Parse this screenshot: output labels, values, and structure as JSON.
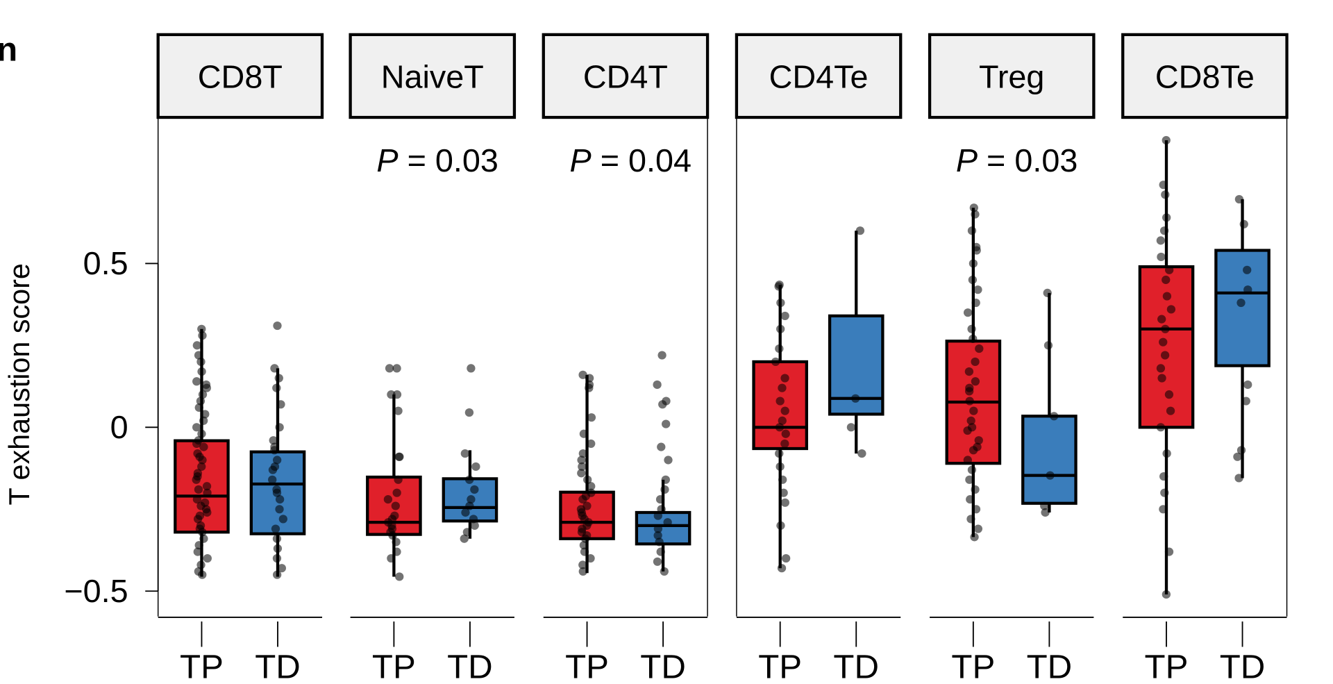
{
  "panel_label": "n",
  "chart_data": {
    "type": "box",
    "ylabel": "T exhaustion score",
    "yticks": [
      0.5,
      0,
      -0.5
    ],
    "ytick_labels": [
      "0.5",
      "0",
      "−0.5"
    ],
    "ylim": [
      -0.58,
      0.93
    ],
    "grid": false,
    "categories": [
      "TP",
      "TD"
    ],
    "colors": {
      "TP": "#e0202a",
      "TD": "#3a7dbb"
    },
    "panels": [
      {
        "name": "CD8T",
        "pvalue": "",
        "groups": [
          {
            "label": "TP",
            "whisker_low": -0.456,
            "q1": -0.32,
            "median": -0.21,
            "q3": -0.041,
            "whisker_high": 0.3,
            "points": [
              0.3,
              0.28,
              0.25,
              0.22,
              0.2,
              0.17,
              0.14,
              0.13,
              0.1,
              0.08,
              0.06,
              0.04,
              0.02,
              0.0,
              -0.02,
              -0.04,
              -0.06,
              -0.08,
              -0.1,
              -0.12,
              -0.14,
              -0.16,
              -0.18,
              -0.2,
              -0.22,
              -0.24,
              -0.26,
              -0.28,
              -0.3,
              -0.32,
              -0.34,
              -0.36,
              -0.38,
              -0.4,
              -0.42,
              -0.44,
              -0.45,
              -0.09,
              -0.15,
              -0.23,
              -0.27,
              -0.31,
              -0.05,
              0.12,
              -0.19,
              -0.25
            ]
          },
          {
            "label": "TD",
            "whisker_low": -0.456,
            "q1": -0.325,
            "median": -0.173,
            "q3": -0.075,
            "whisker_high": 0.18,
            "points": [
              0.31,
              0.18,
              0.15,
              0.12,
              0.07,
              0.0,
              -0.04,
              -0.07,
              -0.1,
              -0.13,
              -0.16,
              -0.19,
              -0.22,
              -0.25,
              -0.28,
              -0.31,
              -0.34,
              -0.37,
              -0.4,
              -0.43,
              -0.45,
              -0.2,
              -0.12,
              -0.06
            ]
          }
        ]
      },
      {
        "name": "NaiveT",
        "pvalue": "0.03",
        "groups": [
          {
            "label": "TP",
            "whisker_low": -0.456,
            "q1": -0.327,
            "median": -0.29,
            "q3": -0.152,
            "whisker_high": 0.1,
            "points": [
              0.18,
              0.18,
              0.1,
              0.1,
              0.05,
              -0.09,
              -0.09,
              -0.16,
              -0.2,
              -0.24,
              -0.27,
              -0.29,
              -0.3,
              -0.31,
              -0.32,
              -0.33,
              -0.35,
              -0.38,
              -0.4,
              -0.456,
              -0.22,
              -0.28
            ]
          },
          {
            "label": "TD",
            "whisker_low": -0.34,
            "q1": -0.286,
            "median": -0.245,
            "q3": -0.157,
            "whisker_high": -0.07,
            "points": [
              0.18,
              0.045,
              -0.08,
              -0.12,
              -0.16,
              -0.19,
              -0.22,
              -0.24,
              -0.26,
              -0.28,
              -0.3,
              -0.32,
              -0.34
            ]
          }
        ]
      },
      {
        "name": "CD4T",
        "pvalue": "0.04",
        "groups": [
          {
            "label": "TP",
            "whisker_low": -0.445,
            "q1": -0.34,
            "median": -0.29,
            "q3": -0.198,
            "whisker_high": 0.16,
            "points": [
              0.16,
              0.15,
              0.13,
              0.12,
              0.03,
              -0.02,
              -0.05,
              -0.08,
              -0.1,
              -0.12,
              -0.14,
              -0.16,
              -0.18,
              -0.2,
              -0.22,
              -0.24,
              -0.26,
              -0.28,
              -0.3,
              -0.32,
              -0.34,
              -0.36,
              -0.38,
              -0.4,
              -0.42,
              -0.44,
              -0.25,
              -0.29,
              -0.31,
              -0.21,
              -0.27,
              -0.33
            ]
          },
          {
            "label": "TD",
            "whisker_low": -0.44,
            "q1": -0.356,
            "median": -0.3,
            "q3": -0.26,
            "whisker_high": -0.16,
            "points": [
              0.22,
              0.13,
              0.08,
              0.07,
              0.01,
              -0.06,
              -0.1,
              -0.16,
              -0.19,
              -0.22,
              -0.25,
              -0.27,
              -0.29,
              -0.31,
              -0.33,
              -0.35,
              -0.38,
              -0.41,
              -0.44
            ]
          }
        ]
      },
      {
        "name": "CD4Te",
        "pvalue": "",
        "groups": [
          {
            "label": "TP",
            "whisker_low": -0.43,
            "q1": -0.065,
            "median": 0.0,
            "q3": 0.2,
            "whisker_high": 0.435,
            "points": [
              0.435,
              0.43,
              0.38,
              0.34,
              0.3,
              0.24,
              0.2,
              0.15,
              0.12,
              0.08,
              0.05,
              0.02,
              0.0,
              -0.02,
              -0.05,
              -0.08,
              -0.12,
              -0.16,
              -0.2,
              -0.23,
              -0.3,
              -0.4,
              -0.43
            ]
          },
          {
            "label": "TD",
            "whisker_low": -0.08,
            "q1": 0.04,
            "median": 0.088,
            "q3": 0.34,
            "whisker_high": 0.6,
            "points": [
              0.6,
              0.088,
              0.0,
              -0.08
            ]
          }
        ]
      },
      {
        "name": "Treg",
        "pvalue": "0.03",
        "groups": [
          {
            "label": "TP",
            "whisker_low": -0.335,
            "q1": -0.11,
            "median": 0.077,
            "q3": 0.263,
            "whisker_high": 0.67,
            "points": [
              0.67,
              0.65,
              0.6,
              0.55,
              0.54,
              0.5,
              0.45,
              0.42,
              0.38,
              0.35,
              0.3,
              0.27,
              0.24,
              0.2,
              0.17,
              0.14,
              0.11,
              0.08,
              0.05,
              0.02,
              -0.01,
              -0.04,
              -0.07,
              -0.1,
              -0.13,
              -0.16,
              -0.19,
              -0.22,
              -0.25,
              -0.28,
              -0.31,
              -0.335,
              0.0,
              -0.06,
              0.12
            ]
          },
          {
            "label": "TD",
            "whisker_low": -0.26,
            "q1": -0.232,
            "median": -0.147,
            "q3": 0.034,
            "whisker_high": 0.41,
            "points": [
              0.41,
              0.25,
              0.034,
              -0.147,
              -0.24,
              -0.26
            ]
          }
        ]
      },
      {
        "name": "CD8Te",
        "pvalue": "",
        "groups": [
          {
            "label": "TP",
            "whisker_low": -0.51,
            "q1": 0.0,
            "median": 0.3,
            "q3": 0.49,
            "whisker_high": 0.876,
            "points": [
              0.876,
              0.74,
              0.71,
              0.64,
              0.6,
              0.57,
              0.52,
              0.48,
              0.45,
              0.4,
              0.36,
              0.33,
              0.3,
              0.26,
              0.22,
              0.18,
              0.15,
              0.1,
              0.05,
              0.0,
              -0.08,
              -0.15,
              -0.2,
              -0.25,
              -0.38,
              -0.51
            ]
          },
          {
            "label": "TD",
            "whisker_low": -0.155,
            "q1": 0.188,
            "median": 0.41,
            "q3": 0.54,
            "whisker_high": 0.696,
            "points": [
              0.696,
              0.62,
              0.48,
              0.42,
              0.38,
              0.13,
              0.08,
              -0.07,
              -0.09,
              -0.155
            ]
          }
        ]
      }
    ]
  }
}
